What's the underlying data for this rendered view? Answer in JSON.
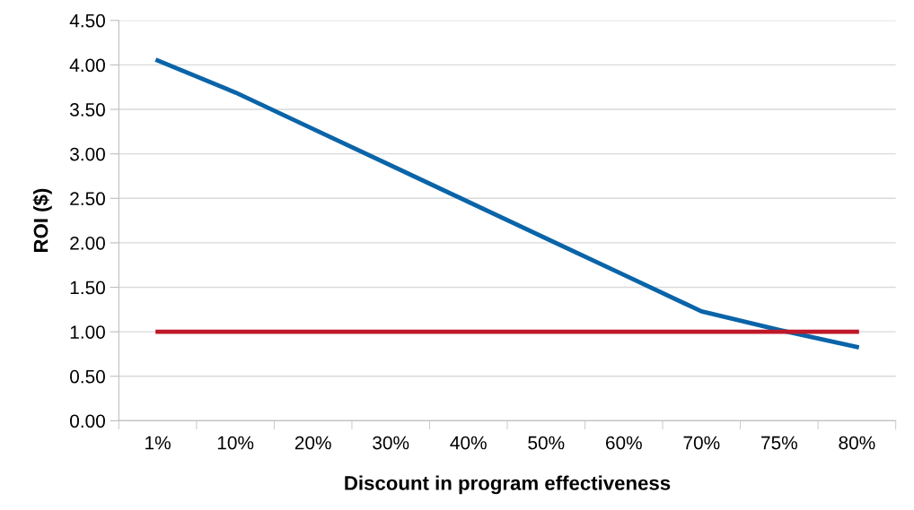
{
  "chart_data": {
    "type": "line",
    "xlabel": "Discount in program effectiveness",
    "ylabel": "ROI ($)",
    "categories": [
      "1%",
      "10%",
      "20%",
      "30%",
      "40%",
      "50%",
      "60%",
      "70%",
      "75%",
      "80%"
    ],
    "series": [
      {
        "color": "#0a64a8",
        "values": [
          4.05,
          3.69,
          3.28,
          2.87,
          2.46,
          2.05,
          1.64,
          1.23,
          1.02,
          0.83
        ]
      },
      {
        "color": "#c0182a",
        "values": [
          1.0,
          1.0,
          1.0,
          1.0,
          1.0,
          1.0,
          1.0,
          1.0,
          1.0,
          1.0
        ]
      }
    ],
    "ylim": [
      0,
      4.5
    ],
    "yticks": [
      {
        "value": 0,
        "label": "0.00"
      },
      {
        "value": 0.5,
        "label": "0.50"
      },
      {
        "value": 1,
        "label": "1.00"
      },
      {
        "value": 1.5,
        "label": "1.50"
      },
      {
        "value": 2,
        "label": "2.00"
      },
      {
        "value": 2.5,
        "label": "2.50"
      },
      {
        "value": 3,
        "label": "3.00"
      },
      {
        "value": 3.5,
        "label": "3.50"
      },
      {
        "value": 4,
        "label": "4.00"
      },
      {
        "value": 4.5,
        "label": "4.50"
      }
    ],
    "grid": "y",
    "marker": "none",
    "line_style": "solid"
  }
}
